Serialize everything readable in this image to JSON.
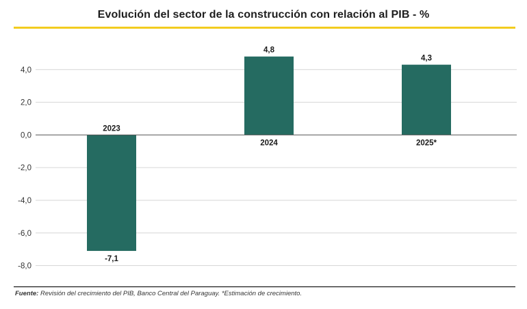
{
  "colors": {
    "accent": "#f2cc1f",
    "bar": "#256b61",
    "grid": "#d6d6d6",
    "axis": "#555555",
    "bottom_rule": "#1a1a1a"
  },
  "chart_data": {
    "type": "bar",
    "title": "Evolución del sector de la construcción con relación al PIB - %",
    "categories": [
      "2023",
      "2024",
      "2025*"
    ],
    "values": [
      -7.1,
      4.8,
      4.3
    ],
    "value_labels": [
      "-7,1",
      "4,8",
      "4,3"
    ],
    "yticks": [
      4.0,
      2.0,
      0.0,
      -2.0,
      -4.0,
      -6.0,
      -8.0
    ],
    "ytick_labels": [
      "4,0",
      "2,0",
      "0,0",
      "-2,0",
      "-4,0",
      "-6,0",
      "-8,0"
    ],
    "ylim": [
      -9.4,
      6.0
    ],
    "xlabel": "",
    "ylabel": "",
    "grid": true,
    "legend": "none"
  },
  "source": {
    "label": "Fuente:",
    "text": " Revisión del crecimiento del PIB, Banco Central del Paraguay. *Estimación de crecimiento."
  }
}
